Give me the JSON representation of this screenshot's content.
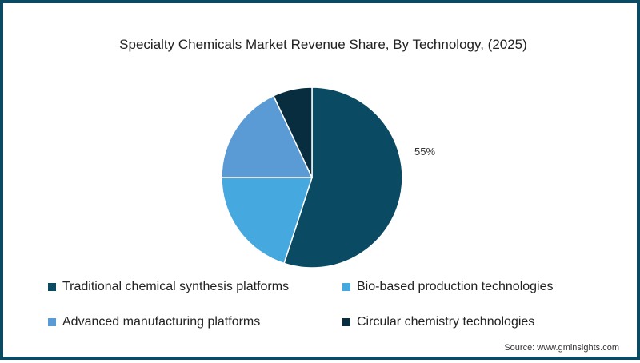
{
  "title": "Specialty Chemicals Market Revenue Share, By Technology, (2025)",
  "source": "Source: www.gminsights.com",
  "chart_data": {
    "type": "pie",
    "title": "Specialty Chemicals Market Revenue Share, By Technology, (2025)",
    "categories": [
      "Traditional chemical synthesis platforms",
      "Bio-based production technologies",
      "Advanced manufacturing platforms",
      "Circular chemistry technologies"
    ],
    "values": [
      55,
      20,
      18,
      7
    ],
    "colors": [
      "#0b4a63",
      "#45a8de",
      "#5b9bd5",
      "#082d3e"
    ],
    "data_labels": [
      "55%",
      "",
      "",
      ""
    ],
    "legend_position": "bottom",
    "start_angle_deg": 0,
    "direction": "clockwise"
  },
  "legend": [
    {
      "label": "Traditional chemical synthesis platforms",
      "color": "#0b4a63"
    },
    {
      "label": "Bio-based production technologies",
      "color": "#45a8de"
    },
    {
      "label": "Advanced manufacturing platforms",
      "color": "#5b9bd5"
    },
    {
      "label": "Circular chemistry technologies",
      "color": "#082d3e"
    }
  ],
  "labels": {
    "main_slice": "55%"
  }
}
